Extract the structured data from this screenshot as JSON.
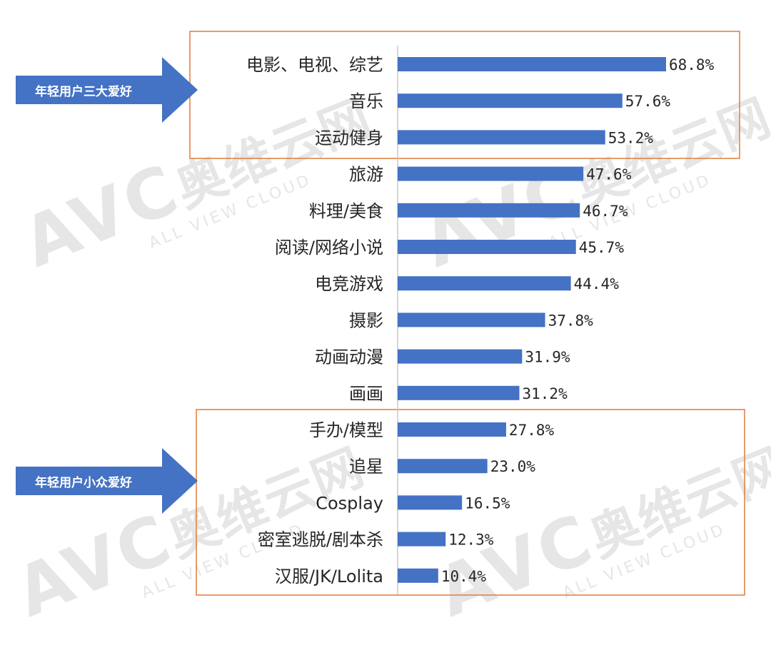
{
  "callouts": {
    "top": "年轻用户三大爱好",
    "bottom": "年轻用户小众爱好"
  },
  "watermark": {
    "brand": "AVC",
    "cn": "奥维云网",
    "sub": "ALL VIEW CLOUD"
  },
  "colors": {
    "bar": "#4472c4",
    "box": "#e07b39",
    "arrow": "#4472c4",
    "axis": "#c8c8c8"
  },
  "chart_data": {
    "type": "bar",
    "orientation": "horizontal",
    "categories": [
      "电影、电视、综艺",
      "音乐",
      "运动健身",
      "旅游",
      "料理/美食",
      "阅读/网络小说",
      "电竞游戏",
      "摄影",
      "动画动漫",
      "画画",
      "手办/模型",
      "追星",
      "Cosplay",
      "密室逃脱/剧本杀",
      "汉服/JK/Lolita"
    ],
    "values": [
      68.8,
      57.6,
      53.2,
      47.6,
      46.7,
      45.7,
      44.4,
      37.8,
      31.9,
      31.2,
      27.8,
      23.0,
      16.5,
      12.3,
      10.4
    ],
    "value_labels": [
      "68.8%",
      "57.6%",
      "53.2%",
      "47.6%",
      "46.7%",
      "45.7%",
      "44.4%",
      "37.8%",
      "31.9%",
      "31.2%",
      "27.8%",
      "23.0%",
      "16.5%",
      "12.3%",
      "10.4%"
    ],
    "unit": "%",
    "xlim": [
      0,
      70
    ],
    "grid": false,
    "legend": "none",
    "highlight_groups": [
      {
        "label_ref": "callouts.top",
        "first": 0,
        "last": 2
      },
      {
        "label_ref": "callouts.bottom",
        "first": 10,
        "last": 14
      }
    ]
  }
}
